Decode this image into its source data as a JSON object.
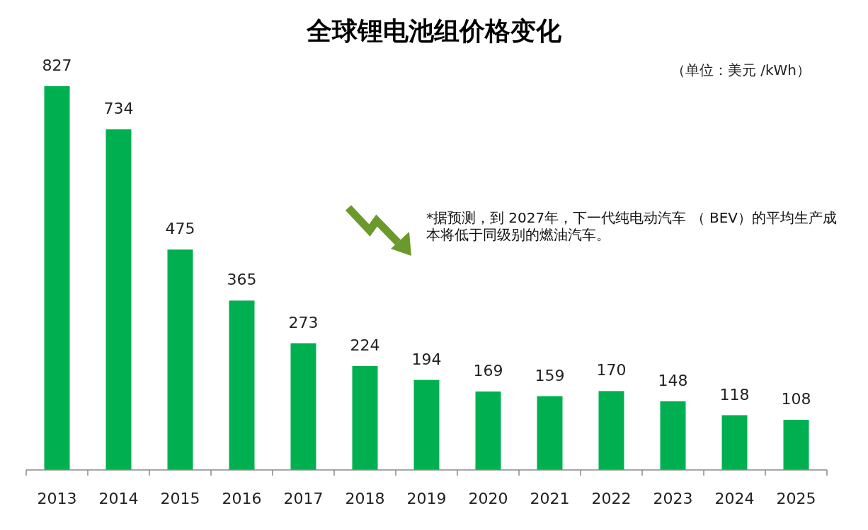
{
  "chart_data": {
    "type": "bar",
    "title": "全球锂电池组价格变化",
    "categories": [
      "2013",
      "2014",
      "2015",
      "2016",
      "2017",
      "2018",
      "2019",
      "2020",
      "2021",
      "2022",
      "2023",
      "2024",
      "2025"
    ],
    "values": [
      827,
      734,
      475,
      365,
      273,
      224,
      194,
      169,
      159,
      170,
      148,
      118,
      108
    ],
    "color": "#00b050",
    "data_labels": true,
    "annotations": [
      "（单位：美元 /kWh）",
      "*据预测，到 2027年，下一代纯电动汽车 （ BEV）的平均生产成本将低于同级别的燃油汽车。"
    ]
  }
}
